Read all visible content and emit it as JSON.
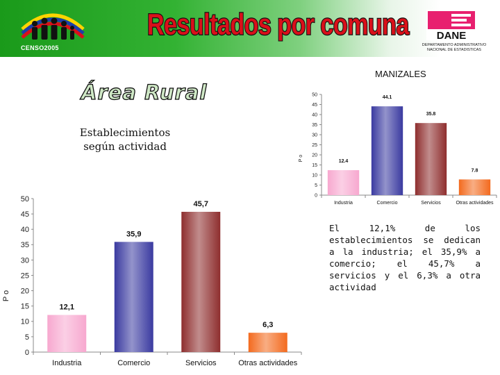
{
  "header": {
    "title": "Resultados por comuna",
    "logo_text": "CENSO2005",
    "dane_logo_text": "DANE",
    "dane_subtitle_line1": "DEPARTAMENTO ADMINISTRATIVO",
    "dane_subtitle_line2": "NACIONAL DE ESTADISTICAS"
  },
  "section": {
    "area": "Área Rural",
    "subtitle": "Establecimientos según actividad",
    "city": "MANIZALES"
  },
  "description": "El 12,1% de los establecimientos se dedican a la industria; el 35,9% a comercio; el 45,7% a servicios y el 6,3% a otra actividad",
  "colors": {
    "industria": "#f7a8cf",
    "comercio": "#3a3aa0",
    "servicios": "#8e2e2e",
    "otras": "#f36a1e",
    "title_red": "#d9101a",
    "dane_pink": "#e8206f"
  },
  "chart_data": [
    {
      "type": "bar",
      "categories": [
        "Industria",
        "Comercio",
        "Servicios",
        "Otras actividades"
      ],
      "values": [
        12.1,
        35.9,
        45.7,
        6.3
      ],
      "value_labels": [
        "12,1",
        "35,9",
        "45,7",
        "6,3"
      ],
      "ylabel": "P o",
      "ylim": [
        0,
        50
      ],
      "yticks": [
        "0",
        "5",
        "10",
        "15",
        "20",
        "25",
        "30",
        "35",
        "40",
        "45",
        "50"
      ],
      "grid": false
    },
    {
      "type": "bar",
      "categories": [
        "Industria",
        "Comercio",
        "Servicios",
        "Otras actividades"
      ],
      "values": [
        12.4,
        44.1,
        35.8,
        7.8
      ],
      "value_labels": [
        "12.4",
        "44.1",
        "35.8",
        "7.8"
      ],
      "ylabel": "P o",
      "ylim": [
        0,
        50
      ],
      "yticks": [
        "0",
        "5",
        "10",
        "15",
        "20",
        "25",
        "30",
        "35",
        "40",
        "45",
        "50"
      ],
      "grid": false
    }
  ]
}
